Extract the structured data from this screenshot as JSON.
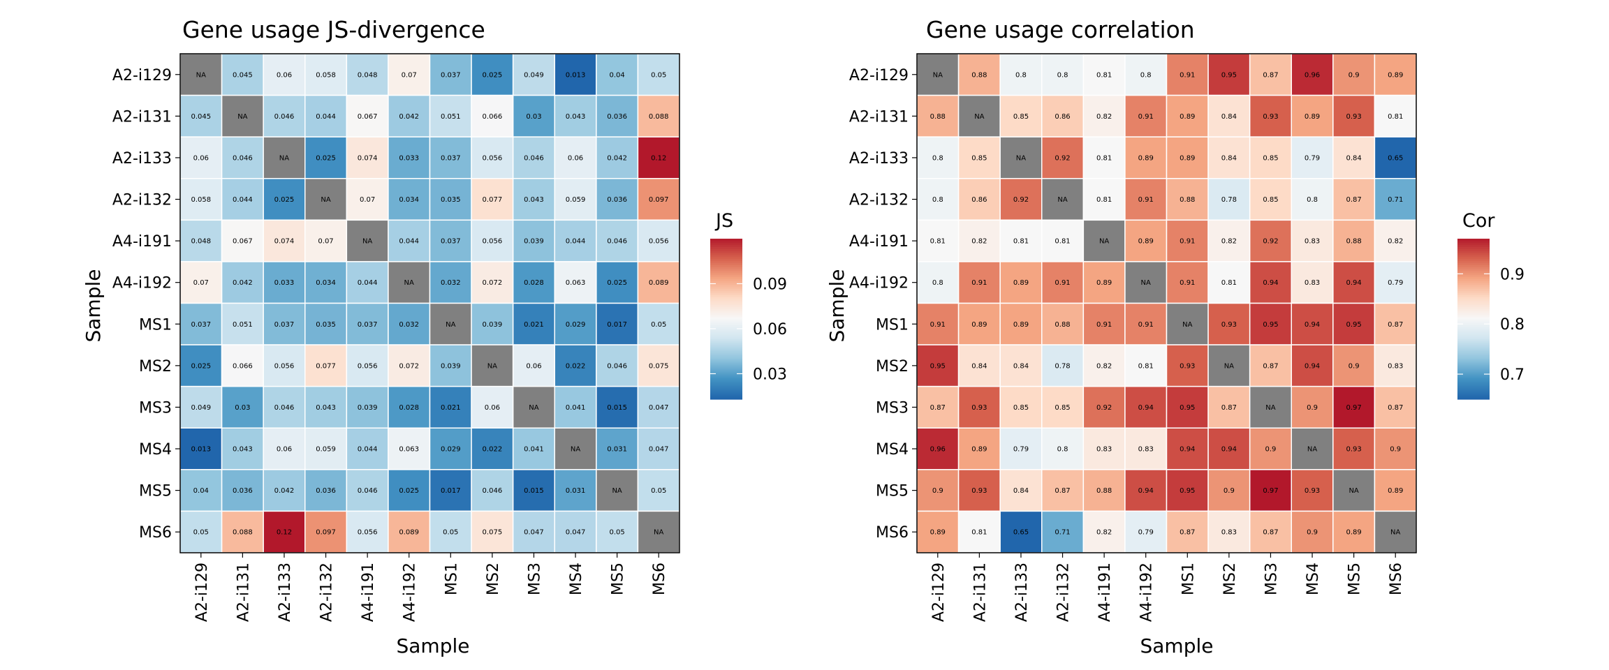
{
  "chart_data": [
    {
      "type": "heatmap",
      "title": "Gene usage JS-divergence",
      "xlabel": "Sample",
      "ylabel": "Sample",
      "categories": [
        "A2-i129",
        "A2-i131",
        "A2-i133",
        "A2-i132",
        "A4-i191",
        "A4-i192",
        "MS1",
        "MS2",
        "MS3",
        "MS4",
        "MS5",
        "MS6"
      ],
      "colormap": "RdBu_r",
      "na_color": "#808080",
      "na_label": "NA",
      "colorbar": {
        "title": "JS",
        "range": [
          0.013,
          0.12
        ],
        "ticks": [
          0.03,
          0.06,
          0.09
        ],
        "tick_labels": [
          "0.03",
          "0.06",
          "0.09"
        ]
      },
      "values": [
        [
          null,
          0.045,
          0.06,
          0.058,
          0.048,
          0.07,
          0.037,
          0.025,
          0.049,
          0.013,
          0.04,
          0.05
        ],
        [
          0.045,
          null,
          0.046,
          0.044,
          0.067,
          0.042,
          0.051,
          0.066,
          0.03,
          0.043,
          0.036,
          0.088
        ],
        [
          0.06,
          0.046,
          null,
          0.025,
          0.074,
          0.033,
          0.037,
          0.056,
          0.046,
          0.06,
          0.042,
          0.12
        ],
        [
          0.058,
          0.044,
          0.025,
          null,
          0.07,
          0.034,
          0.035,
          0.077,
          0.043,
          0.059,
          0.036,
          0.097
        ],
        [
          0.048,
          0.067,
          0.074,
          0.07,
          null,
          0.044,
          0.037,
          0.056,
          0.039,
          0.044,
          0.046,
          0.056
        ],
        [
          0.07,
          0.042,
          0.033,
          0.034,
          0.044,
          null,
          0.032,
          0.072,
          0.028,
          0.063,
          0.025,
          0.089
        ],
        [
          0.037,
          0.051,
          0.037,
          0.035,
          0.037,
          0.032,
          null,
          0.039,
          0.021,
          0.029,
          0.017,
          0.05
        ],
        [
          0.025,
          0.066,
          0.056,
          0.077,
          0.056,
          0.072,
          0.039,
          null,
          0.06,
          0.022,
          0.046,
          0.075
        ],
        [
          0.049,
          0.03,
          0.046,
          0.043,
          0.039,
          0.028,
          0.021,
          0.06,
          null,
          0.041,
          0.015,
          0.047
        ],
        [
          0.013,
          0.043,
          0.06,
          0.059,
          0.044,
          0.063,
          0.029,
          0.022,
          0.041,
          null,
          0.031,
          0.047
        ],
        [
          0.04,
          0.036,
          0.042,
          0.036,
          0.046,
          0.025,
          0.017,
          0.046,
          0.015,
          0.031,
          null,
          0.05
        ],
        [
          0.05,
          0.088,
          0.12,
          0.097,
          0.056,
          0.089,
          0.05,
          0.075,
          0.047,
          0.047,
          0.05,
          null
        ]
      ]
    },
    {
      "type": "heatmap",
      "title": "Gene usage correlation",
      "xlabel": "Sample",
      "ylabel": "Sample",
      "categories": [
        "A2-i129",
        "A2-i131",
        "A2-i133",
        "A2-i132",
        "A4-i191",
        "A4-i192",
        "MS1",
        "MS2",
        "MS3",
        "MS4",
        "MS5",
        "MS6"
      ],
      "colormap": "RdBu_r",
      "na_color": "#808080",
      "na_label": "NA",
      "colorbar": {
        "title": "Cor",
        "range": [
          0.65,
          0.97
        ],
        "ticks": [
          0.7,
          0.8,
          0.9
        ],
        "tick_labels": [
          "0.7",
          "0.8",
          "0.9"
        ]
      },
      "values": [
        [
          null,
          0.88,
          0.8,
          0.8,
          0.81,
          0.8,
          0.91,
          0.95,
          0.87,
          0.96,
          0.9,
          0.89
        ],
        [
          0.88,
          null,
          0.85,
          0.86,
          0.82,
          0.91,
          0.89,
          0.84,
          0.93,
          0.89,
          0.93,
          0.81
        ],
        [
          0.8,
          0.85,
          null,
          0.92,
          0.81,
          0.89,
          0.89,
          0.84,
          0.85,
          0.79,
          0.84,
          0.65
        ],
        [
          0.8,
          0.86,
          0.92,
          null,
          0.81,
          0.91,
          0.88,
          0.78,
          0.85,
          0.8,
          0.87,
          0.71
        ],
        [
          0.81,
          0.82,
          0.81,
          0.81,
          null,
          0.89,
          0.91,
          0.82,
          0.92,
          0.83,
          0.88,
          0.82
        ],
        [
          0.8,
          0.91,
          0.89,
          0.91,
          0.89,
          null,
          0.91,
          0.81,
          0.94,
          0.83,
          0.94,
          0.79
        ],
        [
          0.91,
          0.89,
          0.89,
          0.88,
          0.91,
          0.91,
          null,
          0.93,
          0.95,
          0.94,
          0.95,
          0.87
        ],
        [
          0.95,
          0.84,
          0.84,
          0.78,
          0.82,
          0.81,
          0.93,
          null,
          0.87,
          0.94,
          0.9,
          0.83
        ],
        [
          0.87,
          0.93,
          0.85,
          0.85,
          0.92,
          0.94,
          0.95,
          0.87,
          null,
          0.9,
          0.97,
          0.87
        ],
        [
          0.96,
          0.89,
          0.79,
          0.8,
          0.83,
          0.83,
          0.94,
          0.94,
          0.9,
          null,
          0.93,
          0.9
        ],
        [
          0.9,
          0.93,
          0.84,
          0.87,
          0.88,
          0.94,
          0.95,
          0.9,
          0.97,
          0.93,
          null,
          0.89
        ],
        [
          0.89,
          0.81,
          0.65,
          0.71,
          0.82,
          0.79,
          0.87,
          0.83,
          0.87,
          0.9,
          0.89,
          null
        ]
      ]
    }
  ]
}
